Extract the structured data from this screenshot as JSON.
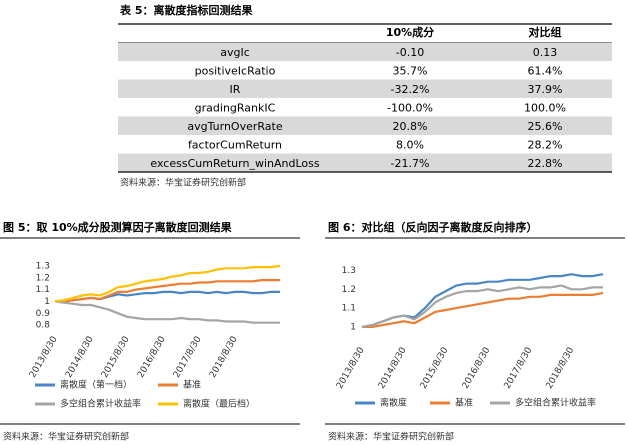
{
  "table_title": "表 5：离散度指标回测结果",
  "table": {
    "header": [
      "10%成分",
      "对比组"
    ],
    "rows": [
      [
        "avgIc",
        "-0.10",
        "0.13"
      ],
      [
        "positiveIcRatio",
        "35.7%",
        "61.4%"
      ],
      [
        "IR",
        "-32.2%",
        "37.9%"
      ],
      [
        "gradingRankIC",
        "-100.0%",
        "100.0%"
      ],
      [
        "avgTurnOverRate",
        "20.8%",
        "25.6%"
      ],
      [
        "factorCumReturn",
        "8.0%",
        "28.2%"
      ],
      [
        "excessCumReturn_winAndLoss",
        "-21.7%",
        "22.8%"
      ]
    ]
  },
  "table_source": "资料来源：华宝证券研究创新部",
  "chart_data": [
    {
      "type": "line",
      "title": "图 5：取 10%成分股测算因子离散度回测结果",
      "source": "资料来源：华宝证券研究创新部",
      "categories": [
        "2013/8/30",
        null,
        null,
        null,
        "2014/8/30",
        null,
        null,
        null,
        "2015/8/30",
        null,
        null,
        null,
        "2016/8/30",
        null,
        null,
        null,
        "2017/8/30",
        null,
        null,
        null,
        "2018/8/30",
        null,
        null,
        null,
        null,
        null
      ],
      "ylim": [
        0.75,
        1.35
      ],
      "yticks": [
        0.8,
        0.9,
        1,
        1.1,
        1.2,
        1.3
      ],
      "series": [
        {
          "name": "离散度（第一档）",
          "color": "#4a86c5",
          "values": [
            1.0,
            1.0,
            1.01,
            1.02,
            1.03,
            1.02,
            1.04,
            1.06,
            1.05,
            1.06,
            1.07,
            1.07,
            1.08,
            1.08,
            1.07,
            1.08,
            1.08,
            1.07,
            1.08,
            1.07,
            1.08,
            1.08,
            1.07,
            1.07,
            1.08,
            1.08
          ]
        },
        {
          "name": "基准",
          "color": "#ed7d31",
          "values": [
            1.0,
            1.0,
            1.01,
            1.02,
            1.03,
            1.02,
            1.05,
            1.08,
            1.08,
            1.1,
            1.11,
            1.12,
            1.13,
            1.14,
            1.15,
            1.15,
            1.16,
            1.16,
            1.17,
            1.17,
            1.17,
            1.17,
            1.17,
            1.18,
            1.18,
            1.18
          ]
        },
        {
          "name": "多空组合累计收益率",
          "color": "#a5a5a5",
          "values": [
            1.0,
            0.99,
            0.98,
            0.97,
            0.97,
            0.95,
            0.93,
            0.9,
            0.87,
            0.86,
            0.85,
            0.85,
            0.85,
            0.85,
            0.86,
            0.85,
            0.85,
            0.84,
            0.84,
            0.83,
            0.83,
            0.83,
            0.82,
            0.82,
            0.82,
            0.82
          ]
        },
        {
          "name": "离散度（最后档）",
          "color": "#ffc000",
          "values": [
            1.0,
            1.01,
            1.03,
            1.05,
            1.06,
            1.05,
            1.08,
            1.12,
            1.13,
            1.15,
            1.17,
            1.18,
            1.19,
            1.21,
            1.22,
            1.24,
            1.24,
            1.25,
            1.27,
            1.28,
            1.28,
            1.28,
            1.29,
            1.29,
            1.29,
            1.3
          ]
        }
      ]
    },
    {
      "type": "line",
      "title": "图 6：对比组（反向因子离散度反向排序）",
      "source": "资料来源：华宝证券研究创新部",
      "categories": [
        "2013/8/30",
        null,
        null,
        null,
        "2014/8/30",
        null,
        null,
        null,
        "2015/8/30",
        null,
        null,
        null,
        "2016/8/30",
        null,
        null,
        null,
        "2017/8/30",
        null,
        null,
        null,
        "2018/8/30",
        null,
        null,
        null
      ],
      "ylim": [
        0.92,
        1.35
      ],
      "yticks": [
        1,
        1.1,
        1.2,
        1.3
      ],
      "series": [
        {
          "name": "离散度",
          "color": "#4a86c5",
          "values": [
            1.0,
            1.01,
            1.03,
            1.05,
            1.06,
            1.05,
            1.1,
            1.16,
            1.19,
            1.22,
            1.23,
            1.23,
            1.24,
            1.24,
            1.25,
            1.25,
            1.25,
            1.26,
            1.27,
            1.27,
            1.28,
            1.27,
            1.27,
            1.28
          ]
        },
        {
          "name": "基准",
          "color": "#ed7d31",
          "values": [
            1.0,
            1.0,
            1.01,
            1.02,
            1.03,
            1.02,
            1.05,
            1.08,
            1.09,
            1.1,
            1.11,
            1.12,
            1.13,
            1.14,
            1.15,
            1.15,
            1.16,
            1.16,
            1.17,
            1.17,
            1.17,
            1.17,
            1.17,
            1.18
          ]
        },
        {
          "name": "多空组合累计收益率",
          "color": "#a5a5a5",
          "values": [
            1.0,
            1.01,
            1.03,
            1.05,
            1.06,
            1.04,
            1.08,
            1.13,
            1.16,
            1.18,
            1.19,
            1.19,
            1.2,
            1.19,
            1.2,
            1.21,
            1.2,
            1.21,
            1.21,
            1.22,
            1.2,
            1.2,
            1.21,
            1.21
          ]
        }
      ]
    }
  ]
}
